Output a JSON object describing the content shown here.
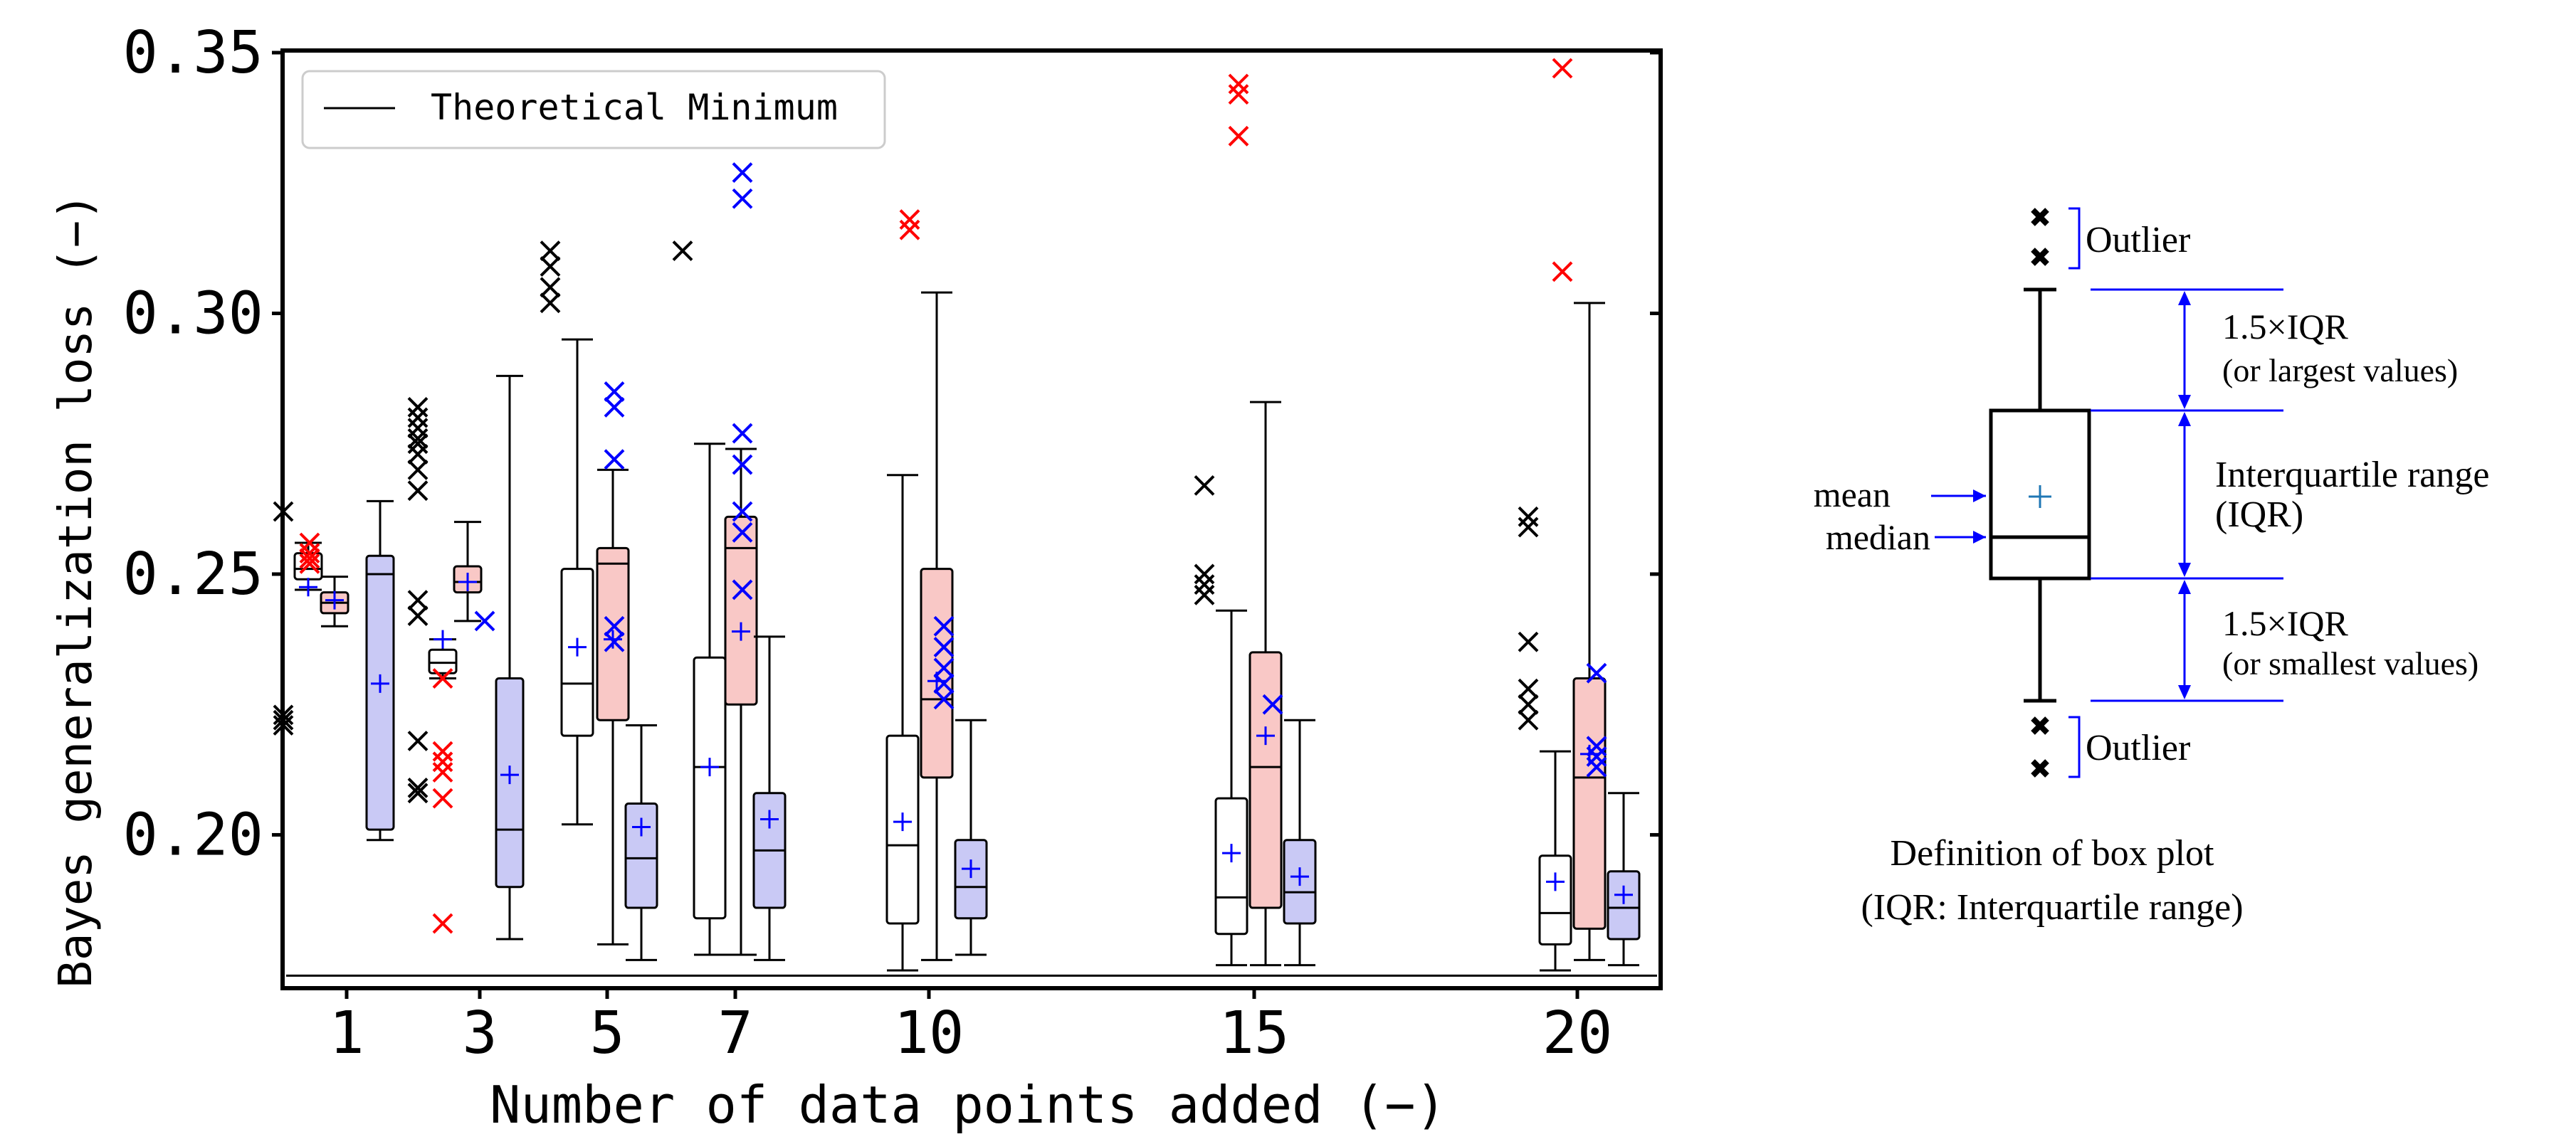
{
  "chart_data": {
    "type": "box",
    "xlabel": "Number of data points added (−)",
    "ylabel": "Bayes generalization loss (−)",
    "ylim": [
      0.171,
      0.35
    ],
    "yticks": [
      0.2,
      0.25,
      0.3,
      0.35
    ],
    "ytick_labels": [
      "0.20",
      "0.25",
      "0.30",
      "0.35"
    ],
    "categories": [
      "1",
      "3",
      "5",
      "7",
      "10",
      "15",
      "20"
    ],
    "legend": {
      "label": "Theoretical Minimum",
      "placement": "top-left"
    },
    "theoretical_minimum": 0.173,
    "colors": {
      "white": "#ffffff",
      "red": "#f9c8c6",
      "blue": "#c9c9f5",
      "red_marker": "#ff0000",
      "blue_marker": "#0000ff",
      "black_marker": "#000000",
      "mean_marker": "#0000ff"
    },
    "groups": [
      {
        "category": "1",
        "x": 1,
        "boxes": [
          {
            "series": "white",
            "whislo": 0.247,
            "q1": 0.249,
            "med": 0.251,
            "q3": 0.254,
            "whishi": 0.256,
            "mean": 0.2475,
            "fliers": [
              0.262,
              0.221,
              0.222,
              0.223
            ]
          },
          {
            "series": "red",
            "whislo": 0.24,
            "q1": 0.2425,
            "med": 0.2445,
            "q3": 0.2465,
            "whishi": 0.2495,
            "mean": 0.245,
            "fliers": [
              0.252,
              0.254,
              0.256,
              0.253
            ]
          },
          {
            "series": "blue",
            "whislo": 0.199,
            "q1": 0.201,
            "med": 0.25,
            "q3": 0.2535,
            "whishi": 0.264,
            "mean": 0.229,
            "fliers": []
          }
        ]
      },
      {
        "category": "3",
        "x": 3,
        "boxes": [
          {
            "series": "white",
            "whislo": 0.23,
            "q1": 0.231,
            "med": 0.233,
            "q3": 0.2355,
            "whishi": 0.2375,
            "mean": 0.2375,
            "fliers": [
              0.282,
              0.28,
              0.278,
              0.276,
              0.275,
              0.273,
              0.27,
              0.266,
              0.245,
              0.242,
              0.218,
              0.209,
              0.208
            ]
          },
          {
            "series": "red",
            "whislo": 0.241,
            "q1": 0.2465,
            "med": 0.2485,
            "q3": 0.2515,
            "whishi": 0.26,
            "mean": 0.2485,
            "fliers": [
              0.23,
              0.216,
              0.214,
              0.212,
              0.207,
              0.183
            ]
          },
          {
            "series": "blue",
            "whislo": 0.18,
            "q1": 0.19,
            "med": 0.201,
            "q3": 0.23,
            "whishi": 0.288,
            "mean": 0.2115,
            "fliers": [
              0.241
            ]
          }
        ]
      },
      {
        "category": "5",
        "x": 5,
        "boxes": [
          {
            "series": "white",
            "whislo": 0.202,
            "q1": 0.219,
            "med": 0.229,
            "q3": 0.251,
            "whishi": 0.295,
            "mean": 0.236,
            "fliers": [
              0.312,
              0.309,
              0.305,
              0.302
            ]
          },
          {
            "series": "red",
            "whislo": 0.179,
            "q1": 0.222,
            "med": 0.252,
            "q3": 0.255,
            "whishi": 0.27,
            "mean": 0.2375,
            "fliers": []
          },
          {
            "series": "blue",
            "whislo": 0.176,
            "q1": 0.186,
            "med": 0.1955,
            "q3": 0.206,
            "whishi": 0.221,
            "mean": 0.2015,
            "fliers": [
              0.285,
              0.282,
              0.272,
              0.24,
              0.237
            ]
          }
        ]
      },
      {
        "category": "7",
        "x": 7,
        "boxes": [
          {
            "series": "white",
            "whislo": 0.177,
            "q1": 0.184,
            "med": 0.213,
            "q3": 0.234,
            "whishi": 0.275,
            "mean": 0.213,
            "fliers": [
              0.312
            ]
          },
          {
            "series": "red",
            "whislo": 0.177,
            "q1": 0.225,
            "med": 0.255,
            "q3": 0.261,
            "whishi": 0.274,
            "mean": 0.239,
            "fliers": []
          },
          {
            "series": "blue",
            "whislo": 0.176,
            "q1": 0.186,
            "med": 0.197,
            "q3": 0.208,
            "whishi": 0.238,
            "mean": 0.203,
            "fliers": [
              0.327,
              0.322,
              0.277,
              0.271,
              0.262,
              0.258,
              0.247
            ]
          }
        ]
      },
      {
        "category": "10",
        "x": 10,
        "boxes": [
          {
            "series": "white",
            "whislo": 0.174,
            "q1": 0.183,
            "med": 0.198,
            "q3": 0.219,
            "whishi": 0.269,
            "mean": 0.2025,
            "fliers": []
          },
          {
            "series": "red",
            "whislo": 0.176,
            "q1": 0.211,
            "med": 0.226,
            "q3": 0.251,
            "whishi": 0.304,
            "mean": 0.2295,
            "fliers": [
              0.318,
              0.316
            ]
          },
          {
            "series": "blue",
            "whislo": 0.177,
            "q1": 0.184,
            "med": 0.19,
            "q3": 0.199,
            "whishi": 0.222,
            "mean": 0.1935,
            "fliers": [
              0.24,
              0.236,
              0.232,
              0.229,
              0.226
            ]
          }
        ]
      },
      {
        "category": "15",
        "x": 15,
        "boxes": [
          {
            "series": "white",
            "whislo": 0.175,
            "q1": 0.181,
            "med": 0.188,
            "q3": 0.207,
            "whishi": 0.243,
            "mean": 0.1965,
            "fliers": [
              0.267,
              0.25,
              0.248,
              0.246
            ]
          },
          {
            "series": "red",
            "whislo": 0.175,
            "q1": 0.186,
            "med": 0.213,
            "q3": 0.235,
            "whishi": 0.283,
            "mean": 0.219,
            "fliers": [
              0.344,
              0.342,
              0.334
            ]
          },
          {
            "series": "blue",
            "whislo": 0.175,
            "q1": 0.183,
            "med": 0.189,
            "q3": 0.199,
            "whishi": 0.222,
            "mean": 0.192,
            "fliers": [
              0.225
            ]
          }
        ]
      },
      {
        "category": "20",
        "x": 20,
        "boxes": [
          {
            "series": "white",
            "whislo": 0.174,
            "q1": 0.179,
            "med": 0.185,
            "q3": 0.196,
            "whishi": 0.216,
            "mean": 0.191,
            "fliers": [
              0.261,
              0.259,
              0.237,
              0.228,
              0.225,
              0.222
            ]
          },
          {
            "series": "red",
            "whislo": 0.176,
            "q1": 0.182,
            "med": 0.211,
            "q3": 0.23,
            "whishi": 0.302,
            "mean": 0.2155,
            "fliers": [
              0.347,
              0.308
            ]
          },
          {
            "series": "blue",
            "whislo": 0.175,
            "q1": 0.18,
            "med": 0.186,
            "q3": 0.193,
            "whishi": 0.208,
            "mean": 0.1885,
            "fliers": [
              0.231,
              0.217,
              0.215,
              0.213
            ]
          }
        ]
      }
    ]
  },
  "definition": {
    "outlier_top": "Outlier",
    "outlier_bottom": "Outlier",
    "upper_whisker_line1": "1.5×IQR",
    "upper_whisker_line2": "(or largest values)",
    "iqr_line1": "Interquartile range",
    "iqr_line2": "(IQR)",
    "lower_whisker_line1": "1.5×IQR",
    "lower_whisker_line2": "(or smallest values)",
    "mean_label": "mean",
    "median_label": "median",
    "caption_line1": "Definition of box plot",
    "caption_line2": "(IQR: Interquartile range)"
  }
}
